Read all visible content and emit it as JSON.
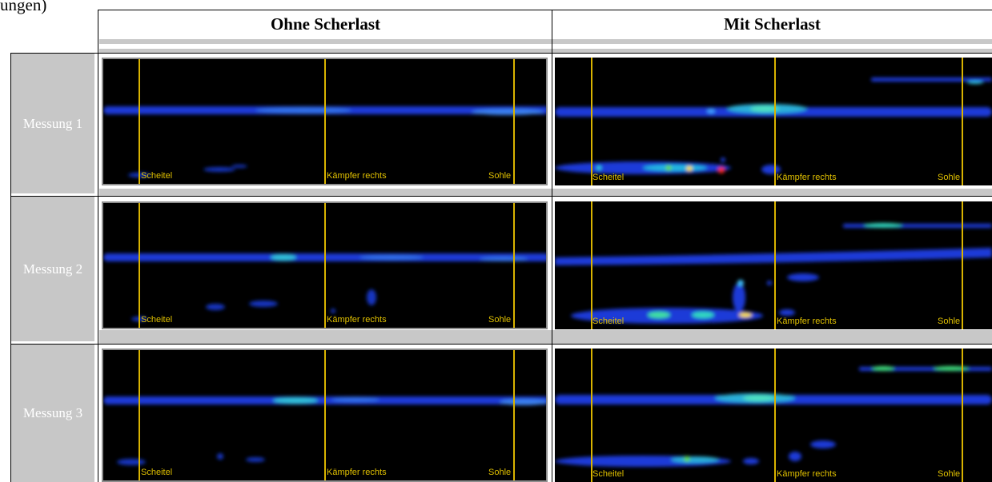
{
  "caption_fragment": "ungen)",
  "headers": {
    "without_shear": "Ohne Scherlast",
    "with_shear": "Mit Scherlast"
  },
  "rows": [
    {
      "label": "Messung 1"
    },
    {
      "label": "Messung 2"
    },
    {
      "label": "Messung 3"
    }
  ],
  "marker_labels": {
    "crown": "Scheitel",
    "springer": "Kämpfer rechts",
    "invert": "Sohle"
  },
  "colors": {
    "background": "#000000",
    "band_low": "#1030d0",
    "band_mid": "#20c0e0",
    "band_high": "#60e020",
    "hot": "#ff3010",
    "marker_line": "#d9b300"
  }
}
